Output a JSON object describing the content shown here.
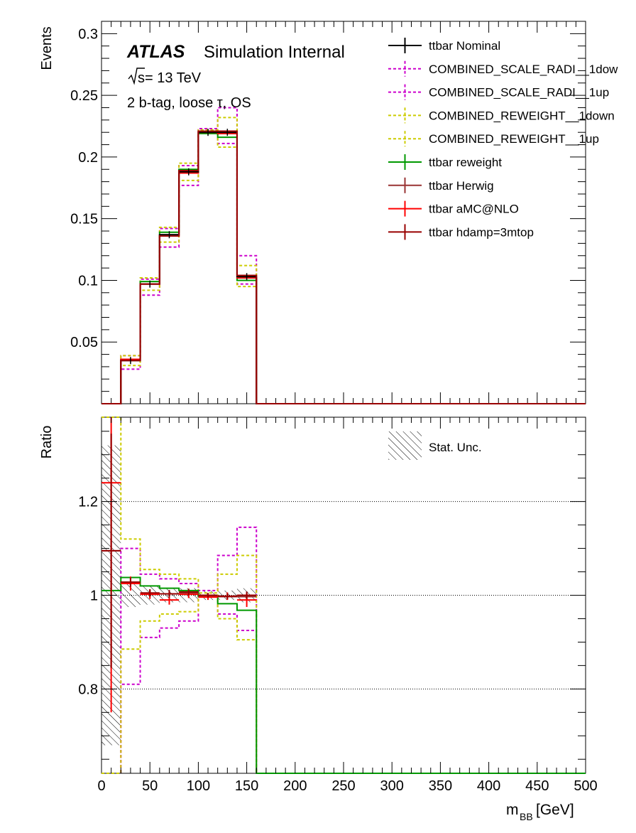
{
  "atlas": {
    "brand": "ATLAS",
    "label": "Simulation Internal",
    "energy_prefix": "s",
    "energy": " = 13 TeV",
    "selection": "2 b-tag, loose τ, OS"
  },
  "legend_top": [
    {
      "name": "ttbar Nominal",
      "color": "#000000",
      "dashed": false
    },
    {
      "name": "COMBINED_SCALE_RADI__1dow",
      "color": "#cc00cc",
      "dashed": true
    },
    {
      "name": "COMBINED_SCALE_RADI__1up",
      "color": "#cc00cc",
      "dashed": true
    },
    {
      "name": "COMBINED_REWEIGHT__1down",
      "color": "#cccc00",
      "dashed": true
    },
    {
      "name": "COMBINED_REWEIGHT__1up",
      "color": "#cccc00",
      "dashed": true
    },
    {
      "name": "ttbar reweight",
      "color": "#009900",
      "dashed": false
    },
    {
      "name": "ttbar Herwig",
      "color": "#993333",
      "dashed": false
    },
    {
      "name": "ttbar aMC@NLO",
      "color": "#ff0000",
      "dashed": false
    },
    {
      "name": "ttbar hdamp=3mtop",
      "color": "#990000",
      "dashed": false
    }
  ],
  "legend_bottom": {
    "label": "Stat. Unc."
  },
  "chart_data": [
    {
      "type": "line",
      "ylabel": "Events",
      "xlim": [
        0,
        500
      ],
      "ylim": [
        0,
        0.31
      ],
      "yticks": [
        0.05,
        0.1,
        0.15,
        0.2,
        0.25,
        0.3
      ],
      "ytick_labels": [
        "0.05",
        "0.1",
        "0.15",
        "0.2",
        "0.25",
        "0.3"
      ],
      "bin_edges": [
        0,
        20,
        40,
        60,
        80,
        100,
        120,
        140,
        160,
        500
      ],
      "series": [
        {
          "name": "COMBINED_SCALE_RADI__1dow",
          "color": "#cc00cc",
          "dashed": true,
          "values": [
            0,
            0.039,
            0.101,
            0.142,
            0.193,
            0.223,
            0.24,
            0.12,
            0
          ]
        },
        {
          "name": "COMBINED_SCALE_RADI__1up",
          "color": "#cc00cc",
          "dashed": true,
          "values": [
            0,
            0.028,
            0.088,
            0.127,
            0.177,
            0.222,
            0.211,
            0.097,
            0
          ]
        },
        {
          "name": "COMBINED_REWEIGHT__1down",
          "color": "#cccc00",
          "dashed": true,
          "values": [
            0,
            0.039,
            0.102,
            0.143,
            0.195,
            0.222,
            0.232,
            0.112,
            0
          ]
        },
        {
          "name": "COMBINED_REWEIGHT__1up",
          "color": "#cccc00",
          "dashed": true,
          "values": [
            0,
            0.031,
            0.092,
            0.131,
            0.181,
            0.22,
            0.208,
            0.095,
            0
          ]
        },
        {
          "name": "ttbar reweight",
          "color": "#009900",
          "dashed": false,
          "values": [
            0,
            0.036,
            0.099,
            0.139,
            0.19,
            0.219,
            0.216,
            0.1,
            0
          ]
        },
        {
          "name": "ttbar Herwig",
          "color": "#993333",
          "dashed": false,
          "values": [
            0,
            0.035,
            0.097,
            0.137,
            0.188,
            0.22,
            0.219,
            0.102,
            0
          ]
        },
        {
          "name": "ttbar aMC@NLO",
          "color": "#ff0000",
          "dashed": false,
          "values": [
            0,
            0.036,
            0.097,
            0.136,
            0.187,
            0.22,
            0.219,
            0.102,
            0
          ]
        },
        {
          "name": "ttbar Nominal",
          "color": "#000000",
          "dashed": false,
          "values": [
            0,
            0.035,
            0.097,
            0.137,
            0.188,
            0.22,
            0.22,
            0.103,
            0
          ]
        },
        {
          "name": "ttbar hdamp=3mtop",
          "color": "#990000",
          "dashed": false,
          "values": [
            0,
            0.035,
            0.097,
            0.136,
            0.189,
            0.221,
            0.221,
            0.104,
            0
          ]
        }
      ]
    },
    {
      "type": "line",
      "ylabel": "Ratio",
      "xlabel": "m",
      "xlabel_sub": "BB",
      "xlabel_unit": " [GeV]",
      "xlim": [
        0,
        500
      ],
      "ylim": [
        0.62,
        1.38
      ],
      "xticks": [
        0,
        50,
        100,
        150,
        200,
        250,
        300,
        350,
        400,
        450,
        500
      ],
      "xtick_labels": [
        "0",
        "50",
        "100",
        "150",
        "200",
        "250",
        "300",
        "350",
        "400",
        "450",
        "500"
      ],
      "yticks": [
        0.8,
        1.0,
        1.2
      ],
      "ytick_labels": [
        "0.8",
        "1",
        "1.2"
      ],
      "gridlines": [
        0.8,
        1.0,
        1.2
      ],
      "bin_edges": [
        0,
        20,
        40,
        60,
        80,
        100,
        120,
        140,
        160,
        500
      ],
      "stat_unc": [
        0.32,
        0.025,
        0.02,
        0.015,
        0.015,
        0.01,
        0.01,
        0.015,
        0
      ],
      "series": [
        {
          "name": "COMBINED_SCALE_RADI__1dow",
          "color": "#cc00cc",
          "dashed": true,
          "values": [
            0.6,
            1.1,
            1.045,
            1.035,
            1.025,
            1.01,
            1.085,
            1.145,
            0.62
          ]
        },
        {
          "name": "COMBINED_SCALE_RADI__1up",
          "color": "#cc00cc",
          "dashed": true,
          "values": [
            0.6,
            0.81,
            0.91,
            0.93,
            0.945,
            1.0,
            0.96,
            0.925,
            0.62
          ]
        },
        {
          "name": "COMBINED_REWEIGHT__1down",
          "color": "#cccc00",
          "dashed": true,
          "values": [
            1.38,
            1.12,
            1.055,
            1.045,
            1.035,
            1.005,
            1.045,
            1.085,
            0.62
          ]
        },
        {
          "name": "COMBINED_REWEIGHT__1up",
          "color": "#cccc00",
          "dashed": true,
          "values": [
            0.6,
            0.885,
            0.945,
            0.96,
            0.965,
            1.0,
            0.95,
            0.905,
            0.62
          ]
        },
        {
          "name": "ttbar reweight",
          "color": "#009900",
          "dashed": false,
          "values": [
            1.01,
            1.038,
            1.02,
            1.015,
            1.01,
            0.997,
            0.982,
            0.968,
            0.62
          ]
        }
      ],
      "points": [
        {
          "name": "ttbar Herwig",
          "color": "#993333",
          "values": [
            1.095,
            1.028,
            1.003,
            1.003,
            1.005,
            0.998,
            0.997,
            0.997
          ],
          "errors": [
            0.25,
            0.01,
            0.008,
            0.008,
            0.007,
            0.005,
            0.006,
            0.008
          ]
        },
        {
          "name": "ttbar aMC@NLO",
          "color": "#ff0000",
          "values": [
            1.24,
            1.025,
            1.002,
            0.99,
            1.002,
            0.996,
            0.998,
            0.99
          ],
          "errors": [
            0.49,
            0.015,
            0.01,
            0.01,
            0.008,
            0.006,
            0.008,
            0.015
          ]
        },
        {
          "name": "ttbar hdamp=3mtop",
          "color": "#990000",
          "values": [
            1.095,
            1.028,
            1.005,
            1.003,
            1.007,
            1.0,
            0.998,
            1.0
          ],
          "errors": [
            0.25,
            0.01,
            0.008,
            0.008,
            0.007,
            0.005,
            0.006,
            0.008
          ]
        }
      ]
    }
  ]
}
